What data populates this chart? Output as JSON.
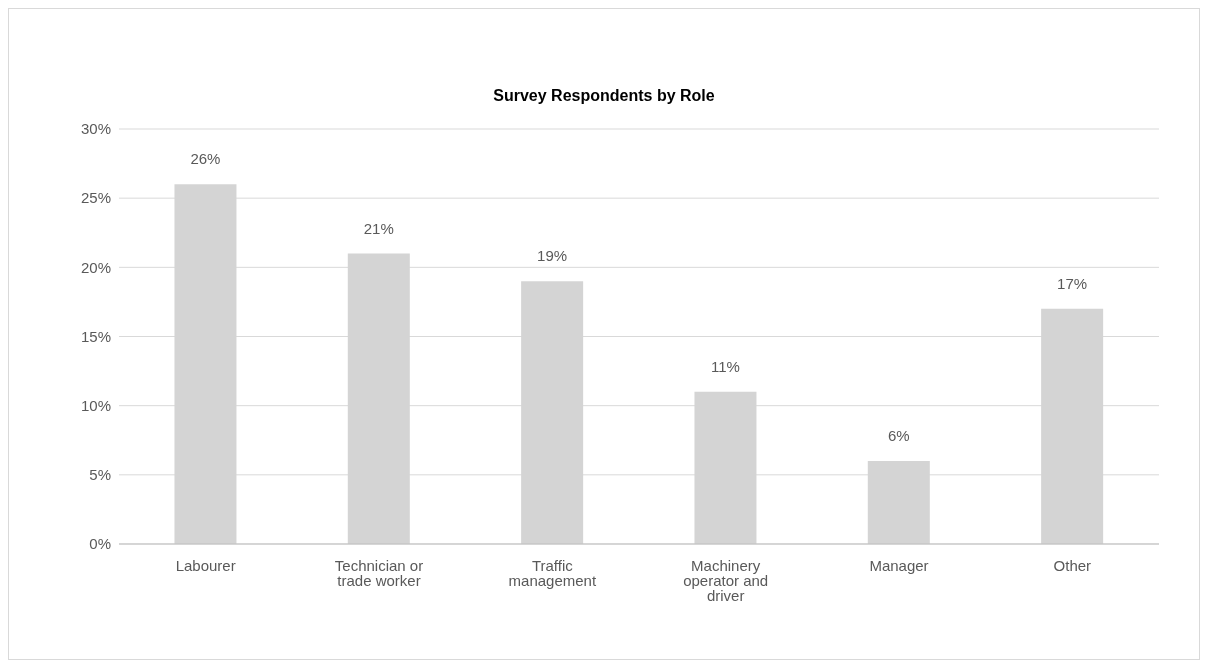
{
  "chart_data": {
    "type": "bar",
    "title": "Survey Respondents by Role",
    "categories": [
      "Labourer",
      "Technician or trade worker",
      "Traffic management",
      "Machinery operator and driver",
      "Manager",
      "Other"
    ],
    "values": [
      26,
      21,
      19,
      11,
      6,
      17
    ],
    "value_labels": [
      "26%",
      "21%",
      "19%",
      "11%",
      "6%",
      "17%"
    ],
    "color": "#d4d4d4",
    "ylim": [
      0,
      30
    ],
    "yticks": [
      {
        "value": 0,
        "label": "0%"
      },
      {
        "value": 5,
        "label": "5%"
      },
      {
        "value": 10,
        "label": "10%"
      },
      {
        "value": 15,
        "label": "15%"
      },
      {
        "value": 20,
        "label": "20%"
      },
      {
        "value": 25,
        "label": "25%"
      },
      {
        "value": 30,
        "label": "30%"
      }
    ],
    "grid": "y"
  }
}
